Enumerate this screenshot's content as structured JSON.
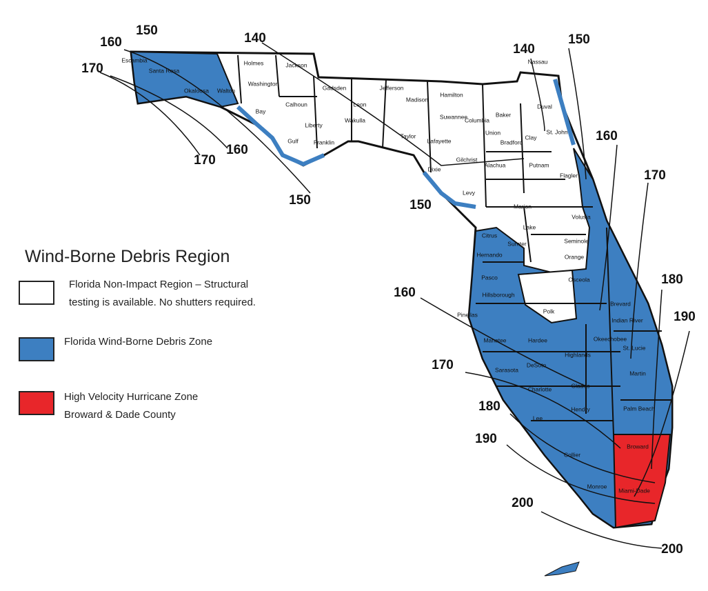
{
  "legend": {
    "title": "Wind-Borne Debris Region",
    "items": [
      {
        "lines": [
          "Florida Non-Impact Region – Structural",
          "testing is available. No shutters required."
        ]
      },
      {
        "lines": [
          "Florida Wind-Borne Debris Zone"
        ]
      },
      {
        "lines": [
          "High Velocity Hurricane Zone",
          "Broward & Dade County"
        ]
      }
    ]
  },
  "counties": [
    "Escambia",
    "Santa Rosa",
    "Okaloosa",
    "Walton",
    "Holmes",
    "Jackson",
    "Washington",
    "Bay",
    "Calhoun",
    "Liberty",
    "Gulf",
    "Franklin",
    "Gadsden",
    "Leon",
    "Wakulla",
    "Jefferson",
    "Madison",
    "Taylor",
    "Hamilton",
    "Suwannee",
    "Lafayette",
    "Dixie",
    "Gilchrist",
    "Columbia",
    "Baker",
    "Union",
    "Bradford",
    "Nassau",
    "Duval",
    "Clay",
    "St. John",
    "Alachua",
    "Putnam",
    "Flagler",
    "Levy",
    "Marion",
    "Volusia",
    "Lake",
    "Seminole",
    "Citrus",
    "Sumter",
    "Hernando",
    "Orange",
    "Pasco",
    "Osceola",
    "Hillsborough",
    "Polk",
    "Brevard",
    "Pinellas",
    "Indian River",
    "Manatee",
    "Hardee",
    "Okeechobee",
    "Highlands",
    "St. Lucie",
    "Sarasota",
    "DeSoto",
    "Martin",
    "Charlotte",
    "Glades",
    "Palm Beach",
    "Lee",
    "Hendry",
    "Broward",
    "Collier",
    "Miami-Dade",
    "Monroe"
  ],
  "contour_labels": [
    150,
    160,
    170,
    140,
    140,
    150,
    170,
    160,
    150,
    150,
    160,
    170,
    160,
    180,
    190,
    170,
    180,
    190,
    200,
    200
  ]
}
